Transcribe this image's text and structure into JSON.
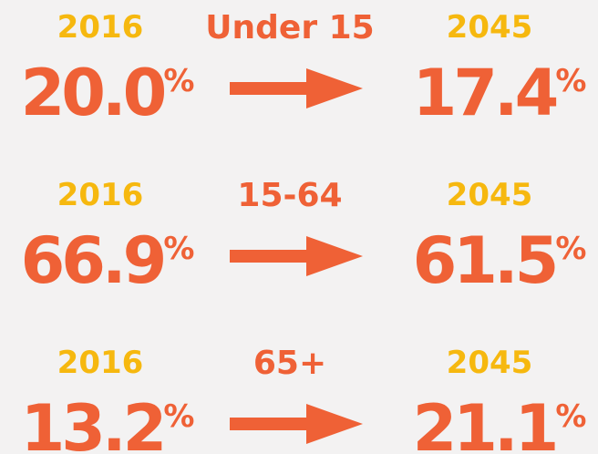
{
  "unit": "%",
  "rows": [
    {
      "from_year": "2016",
      "group": "Under 15",
      "to_year": "2045",
      "from_value": "20.0",
      "to_value": "17.4"
    },
    {
      "from_year": "2016",
      "group": "15-64",
      "to_year": "2045",
      "from_value": "66.9",
      "to_value": "61.5"
    },
    {
      "from_year": "2016",
      "group": "65+",
      "to_year": "2045",
      "from_value": "13.2",
      "to_value": "21.1"
    }
  ]
}
